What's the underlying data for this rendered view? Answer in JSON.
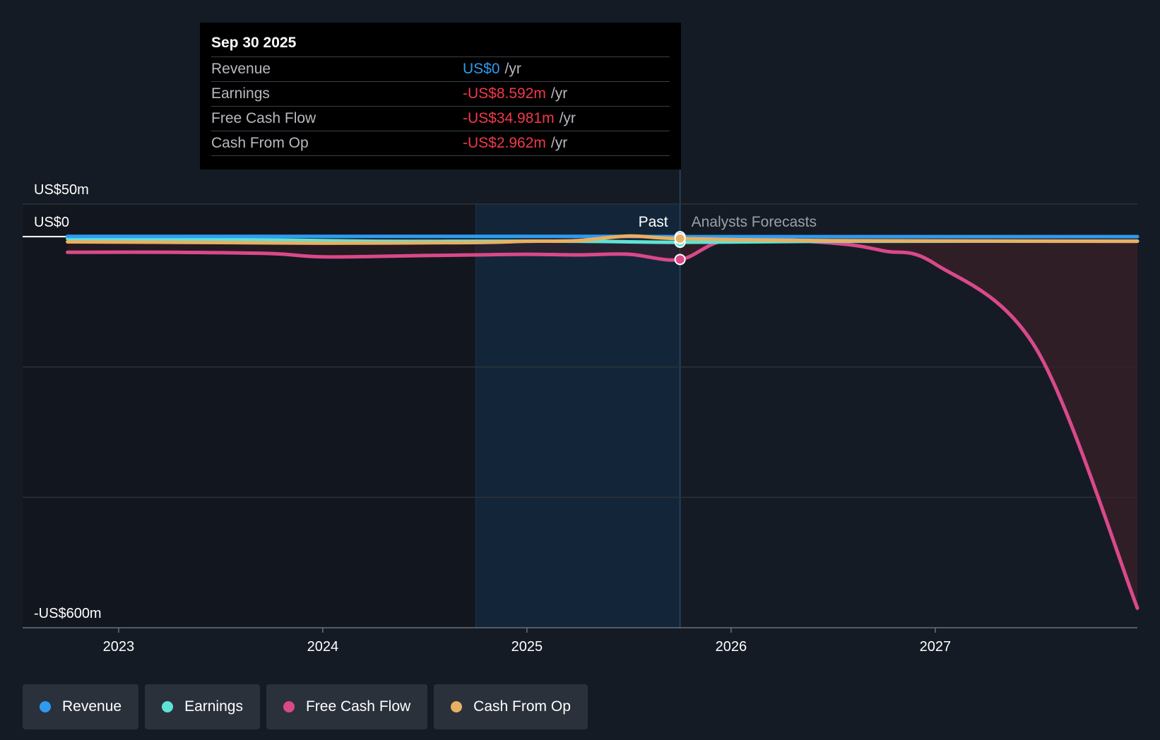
{
  "tooltip": {
    "date": "Sep 30 2025",
    "rows": [
      {
        "name": "Revenue",
        "value": "US$0",
        "unit": "/yr",
        "tone": "blue"
      },
      {
        "name": "Earnings",
        "value": "-US$8.592m",
        "unit": "/yr",
        "tone": "red"
      },
      {
        "name": "Free Cash Flow",
        "value": "-US$34.981m",
        "unit": "/yr",
        "tone": "red"
      },
      {
        "name": "Cash From Op",
        "value": "-US$2.962m",
        "unit": "/yr",
        "tone": "red"
      }
    ]
  },
  "labels": {
    "past": "Past",
    "forecast": "Analysts Forecasts"
  },
  "legend": [
    {
      "label": "Revenue",
      "color": "#2f9bf0"
    },
    {
      "label": "Earnings",
      "color": "#5ee3d6"
    },
    {
      "label": "Free Cash Flow",
      "color": "#d9498a"
    },
    {
      "label": "Cash From Op",
      "color": "#e8b061"
    }
  ],
  "chart_data": {
    "type": "line",
    "title": "",
    "xlabel": "",
    "ylabel": "",
    "x_ticks": [
      {
        "label": "2023",
        "value": 2023.0
      },
      {
        "label": "2024",
        "value": 2024.0
      },
      {
        "label": "2025",
        "value": 2025.0
      },
      {
        "label": "2026",
        "value": 2026.0
      },
      {
        "label": "2027",
        "value": 2027.0
      }
    ],
    "y_ticks": [
      {
        "label": "US$50m",
        "value": 50
      },
      {
        "label": "US$0",
        "value": 0
      },
      {
        "label": "-US$600m",
        "value": -600
      }
    ],
    "xlim": [
      2022.53,
      2027.99
    ],
    "ylim": [
      -600,
      50
    ],
    "grid_values": [
      50,
      -200,
      -400
    ],
    "past_end": 2025.75,
    "highlight_start": 2024.75,
    "series": [
      {
        "name": "Revenue",
        "color": "#2f9bf0",
        "points": [
          [
            2022.75,
            0.5
          ],
          [
            2023.5,
            0.5
          ],
          [
            2024.5,
            0.5
          ],
          [
            2025.25,
            0.5
          ],
          [
            2025.75,
            0
          ],
          [
            2026.5,
            0
          ],
          [
            2027.99,
            0
          ]
        ]
      },
      {
        "name": "Earnings",
        "color": "#5ee3d6",
        "points": [
          [
            2022.75,
            -3
          ],
          [
            2023.25,
            -4
          ],
          [
            2023.75,
            -5
          ],
          [
            2024.25,
            -7
          ],
          [
            2024.75,
            -7
          ],
          [
            2025.25,
            -7
          ],
          [
            2025.75,
            -8.6
          ],
          [
            2026.5,
            -7
          ],
          [
            2027.99,
            -7
          ]
        ]
      },
      {
        "name": "Free Cash Flow",
        "color": "#d9498a",
        "points": [
          [
            2022.75,
            -24
          ],
          [
            2023.25,
            -24
          ],
          [
            2023.75,
            -26
          ],
          [
            2024.0,
            -31
          ],
          [
            2024.5,
            -29
          ],
          [
            2024.75,
            -28
          ],
          [
            2025.0,
            -27
          ],
          [
            2025.25,
            -28
          ],
          [
            2025.5,
            -27
          ],
          [
            2025.75,
            -35
          ],
          [
            2026.0,
            -4
          ],
          [
            2026.5,
            -10
          ],
          [
            2026.75,
            -22
          ],
          [
            2027.0,
            -42
          ],
          [
            2027.5,
            -175
          ],
          [
            2027.99,
            -570
          ]
        ]
      },
      {
        "name": "Cash From Op",
        "color": "#e8b061",
        "points": [
          [
            2022.75,
            -8
          ],
          [
            2023.5,
            -9
          ],
          [
            2024.0,
            -10
          ],
          [
            2024.75,
            -9
          ],
          [
            2025.0,
            -7
          ],
          [
            2025.25,
            -6
          ],
          [
            2025.5,
            1
          ],
          [
            2025.75,
            -3
          ],
          [
            2026.5,
            -6
          ],
          [
            2027.99,
            -7
          ]
        ]
      }
    ]
  }
}
